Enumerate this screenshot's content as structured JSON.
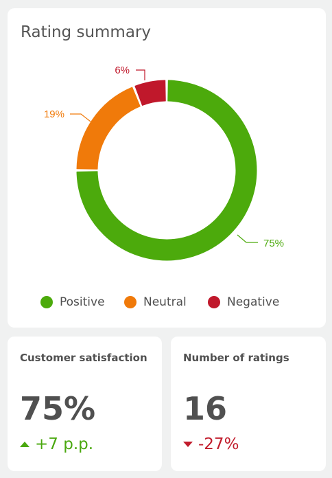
{
  "rating_summary": {
    "title": "Rating summary",
    "legend": [
      {
        "label": "Positive",
        "color": "#4caa0c"
      },
      {
        "label": "Neutral",
        "color": "#f07a0a"
      },
      {
        "label": "Negative",
        "color": "#c0182b"
      }
    ]
  },
  "chart_data": {
    "type": "pie",
    "title": "Rating summary",
    "donut": true,
    "slices": [
      {
        "name": "Positive",
        "value": 75,
        "label": "75%",
        "color": "#4caa0c"
      },
      {
        "name": "Neutral",
        "value": 19,
        "label": "19%",
        "color": "#f07a0a"
      },
      {
        "name": "Negative",
        "value": 6,
        "label": "6%",
        "color": "#c0182b"
      }
    ],
    "legend_placement": "bottom"
  },
  "customer_satisfaction": {
    "title": "Customer satisfaction",
    "value": "75%",
    "delta": "+7 p.p.",
    "delta_direction": "up",
    "delta_color": "#4aa80f"
  },
  "number_of_ratings": {
    "title": "Number of ratings",
    "value": "16",
    "delta": "-27%",
    "delta_direction": "down",
    "delta_color": "#c11c2c"
  }
}
